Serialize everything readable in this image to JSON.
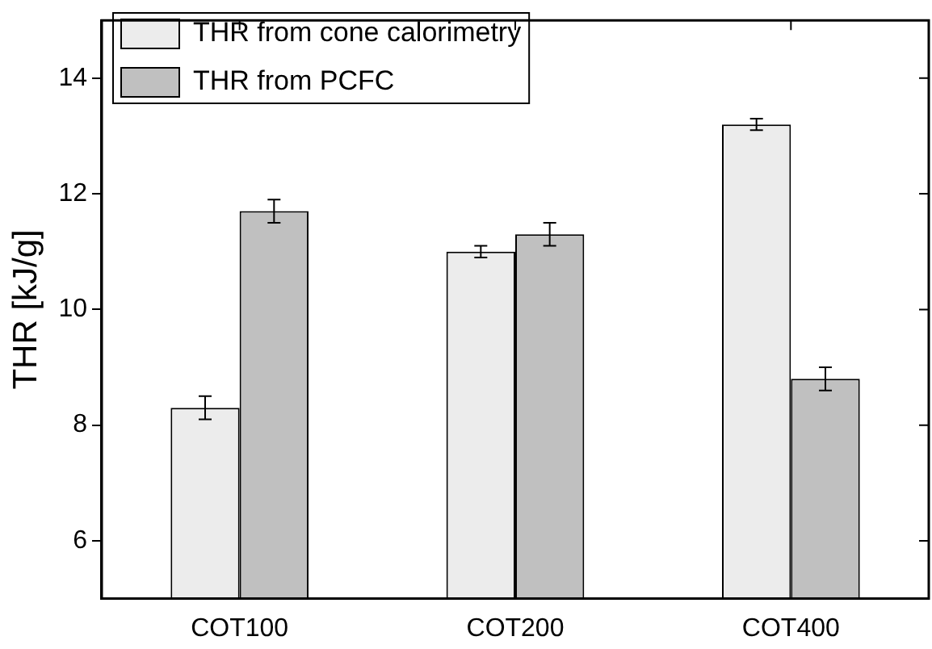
{
  "chart_data": {
    "type": "bar",
    "ylabel": "THR [kJ/g]",
    "categories": [
      "COT100",
      "COT200",
      "COT400"
    ],
    "series": [
      {
        "name": "THR from cone calorimetry",
        "color": "#ececec",
        "values": [
          8.3,
          11.0,
          13.2
        ],
        "errors": [
          0.2,
          0.1,
          0.1
        ]
      },
      {
        "name": "THR from PCFC",
        "color": "#c0c0c0",
        "values": [
          11.7,
          11.3,
          8.8
        ],
        "errors": [
          0.2,
          0.2,
          0.2
        ]
      }
    ],
    "ylim": [
      5,
      15
    ],
    "yticks": [
      6,
      8,
      10,
      12,
      14
    ],
    "grid": false,
    "legend": "top left"
  }
}
